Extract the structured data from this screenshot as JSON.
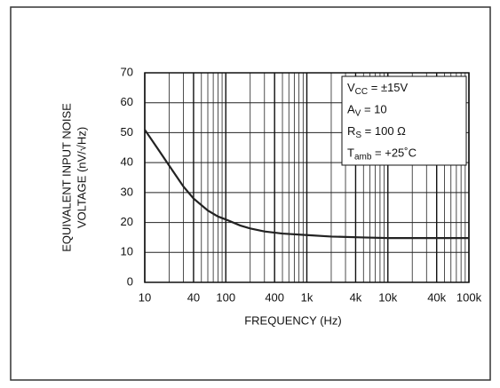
{
  "chart_data": {
    "type": "line",
    "log_x": true,
    "ylabel": [
      "EQUIVALENT INPUT NOISE",
      "VOLTAGE (nV/√Hz)"
    ],
    "xlabel": "FREQUENCY (Hz)",
    "x": [
      10,
      15,
      20,
      30,
      40,
      60,
      80,
      100,
      150,
      200,
      300,
      500,
      1000,
      2000,
      5000,
      10000,
      100000
    ],
    "series": [
      {
        "color": "#222222",
        "values": [
          51,
          44,
          39,
          32,
          28,
          24,
          22,
          21,
          19,
          18,
          17,
          16.3,
          15.8,
          15.3,
          15,
          14.8,
          14.8
        ]
      }
    ],
    "xlim": [
      10,
      100000
    ],
    "xticks": [
      10,
      40,
      100,
      400,
      {
        "value": 1000,
        "label": "1k"
      },
      {
        "value": 4000,
        "label": "4k"
      },
      {
        "value": 10000,
        "label": "10k"
      },
      {
        "value": 40000,
        "label": "40k"
      },
      {
        "value": 100000,
        "label": "100k"
      }
    ],
    "ylim": [
      0,
      70
    ],
    "yticks": [
      0,
      10,
      20,
      30,
      40,
      50,
      60,
      70
    ],
    "grid": true,
    "annotations": [
      [
        "V",
        "CC",
        " = ±15V"
      ],
      [
        "A",
        "V",
        " = 10"
      ],
      [
        "R",
        "S",
        " = 100 Ω"
      ],
      [
        "T",
        "amb",
        " = +25˚C"
      ]
    ]
  }
}
